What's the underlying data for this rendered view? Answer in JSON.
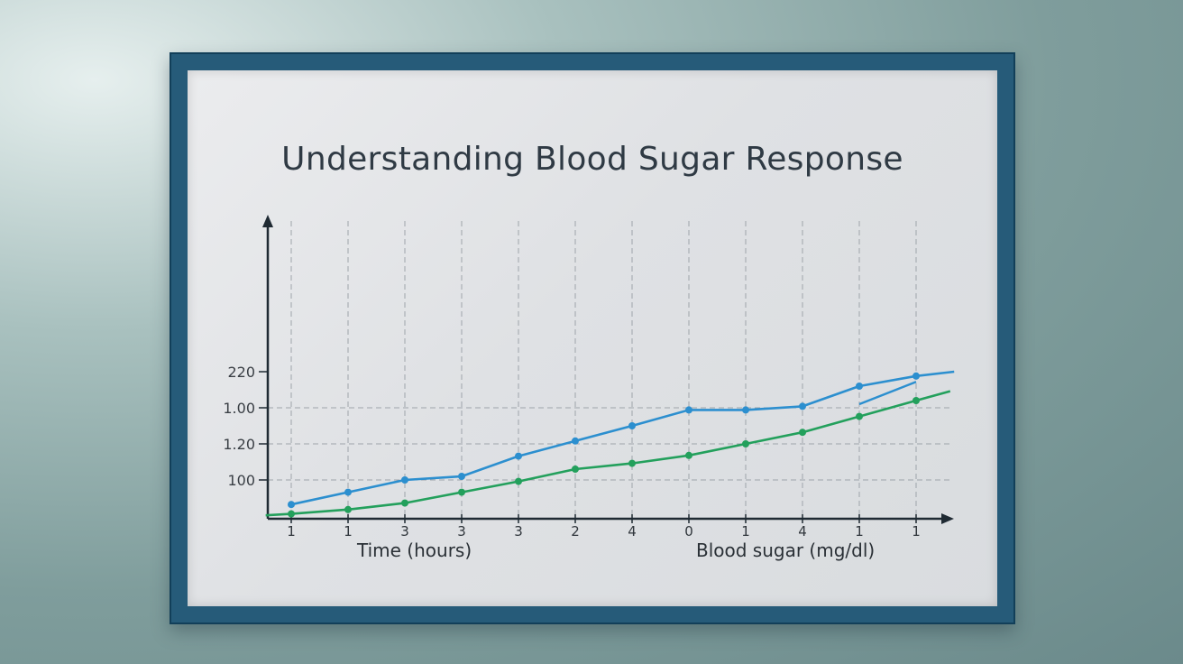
{
  "chart_data": {
    "type": "line",
    "title": "Understanding Blood Sugar Response",
    "xlabel": "Time (hours)",
    "ylabel": "Blood sugar (mg/dl)",
    "x_tick_labels": [
      "1",
      "1",
      "3",
      "3",
      "3",
      "2",
      "4",
      "0",
      "1",
      "4",
      "1",
      "1"
    ],
    "y_tick_labels": [
      "100",
      "1.20",
      "1.00",
      "220"
    ],
    "grid": true,
    "legend": "none",
    "series": [
      {
        "color": "#2c8fcf",
        "points": [
          [
            0,
            66
          ],
          [
            1,
            83
          ],
          [
            2,
            100
          ],
          [
            3,
            105
          ],
          [
            4,
            133
          ],
          [
            5,
            154
          ],
          [
            6,
            175
          ],
          [
            7,
            197
          ],
          [
            8,
            197
          ],
          [
            9,
            202
          ],
          [
            10,
            230
          ],
          [
            11,
            244
          ]
        ],
        "tail": [
          [
            11,
            244
          ],
          [
            11.67,
            250
          ]
        ],
        "hook": [
          [
            10,
            205
          ],
          [
            11,
            236
          ]
        ]
      },
      {
        "color": "#23a05c",
        "points": [
          [
            -0.45,
            51
          ],
          [
            0,
            53
          ],
          [
            1,
            59
          ],
          [
            2,
            68
          ],
          [
            3,
            83
          ],
          [
            4,
            98
          ],
          [
            5,
            115
          ],
          [
            6,
            123
          ],
          [
            7,
            134
          ],
          [
            8,
            150
          ],
          [
            9,
            166
          ],
          [
            10,
            188
          ],
          [
            11,
            210
          ],
          [
            11.6,
            223
          ]
        ]
      }
    ]
  }
}
